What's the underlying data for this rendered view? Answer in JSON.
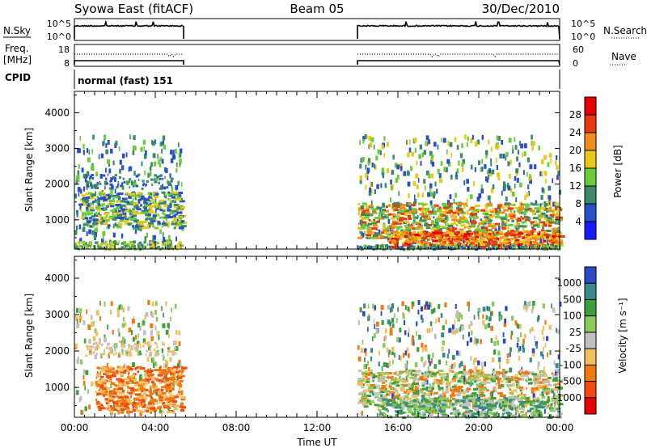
{
  "header": {
    "title": "Syowa East (fitACF)",
    "beam": "Beam 05",
    "date": "30/Dec/2010"
  },
  "status": {
    "nsky_label": "N.Sky",
    "nsearch_label": "N.Search",
    "nsky_ticks": [
      "10^5",
      "10^0"
    ],
    "nsearch_ticks": [
      "10^5",
      "10^0"
    ],
    "freq_label_1": "Freq.",
    "freq_label_2": "[MHz]",
    "freq_ticks": [
      "18",
      "8"
    ],
    "nave_label": "Nave",
    "nave_ticks": [
      "60",
      "0"
    ],
    "cpid_label": "CPID",
    "cpid_value": "normal (fast) 151"
  },
  "chart_data": [
    {
      "type": "heatmap",
      "name": "power",
      "ylabel": "Slant Range [km]",
      "xlabel": "",
      "colorbar_label": "Power [dB]",
      "colorbar_ticks": [
        "4",
        "8",
        "12",
        "16",
        "20",
        "24",
        "28"
      ],
      "colorbar_colors": [
        "#1a1aff",
        "#2a50c8",
        "#3a8a6a",
        "#6acc3a",
        "#e8c81a",
        "#f08c1a",
        "#e83a10",
        "#e80000"
      ],
      "ylim": [
        180,
        4600
      ],
      "yticks": [
        "1000",
        "2000",
        "3000",
        "4000"
      ],
      "xlim_hours": [
        0,
        24
      ],
      "data_gaps_hours": [
        [
          5.4,
          14.0
        ]
      ]
    },
    {
      "type": "heatmap",
      "name": "velocity",
      "ylabel": "Slant Range [km]",
      "xlabel": "Time UT",
      "colorbar_label": "Velocity [m s⁻¹]",
      "colorbar_ticks": [
        "-1000",
        "-500",
        "-100",
        "-25",
        "25",
        "100",
        "500",
        "1000"
      ],
      "colorbar_colors": [
        "#e80000",
        "#f04a10",
        "#f07a10",
        "#f0c060",
        "#c0c0c0",
        "#8acc5a",
        "#3ca03c",
        "#3a8a8a",
        "#2a4ac8"
      ],
      "ylim": [
        180,
        4600
      ],
      "yticks": [
        "1000",
        "2000",
        "3000",
        "4000"
      ],
      "xticks": [
        "00:00",
        "04:00",
        "08:00",
        "12:00",
        "16:00",
        "20:00",
        "00:00"
      ],
      "xlim_hours": [
        0,
        24
      ],
      "data_gaps_hours": [
        [
          5.4,
          14.0
        ]
      ]
    }
  ]
}
